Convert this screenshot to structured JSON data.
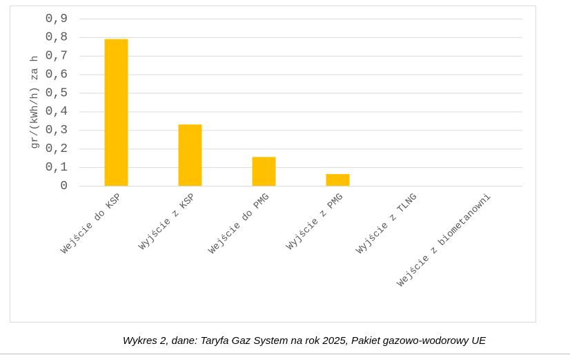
{
  "chart_data": {
    "type": "bar",
    "y_label": "gr/(kWh/h) za h",
    "categories": [
      "Wejście do KSP",
      "Wyjście z KSP",
      "Wejście do PMG",
      "Wyjście z PMG",
      "Wyjście z TLNG",
      "Wejście z biometanowni"
    ],
    "values": [
      0.79,
      0.33,
      0.155,
      0.063,
      0,
      0
    ],
    "color": "#ffc000",
    "ylim": [
      0,
      0.9
    ],
    "yticks": [
      0,
      {
        "value": 0.1,
        "label": "0,1"
      },
      {
        "value": 0.2,
        "label": "0,2"
      },
      {
        "value": 0.3,
        "label": "0,3"
      },
      {
        "value": 0.4,
        "label": "0,4"
      },
      {
        "value": 0.5,
        "label": "0,5"
      },
      {
        "value": 0.6,
        "label": "0,6"
      },
      {
        "value": 0.7,
        "label": "0,7"
      },
      {
        "value": 0.8,
        "label": "0,8"
      },
      {
        "value": 0.9,
        "label": "0,9"
      }
    ],
    "grid": true
  },
  "caption": "Wykres 2, dane: Taryfa Gaz System na rok 2025, Pakiet gazowo-wodorowy UE"
}
